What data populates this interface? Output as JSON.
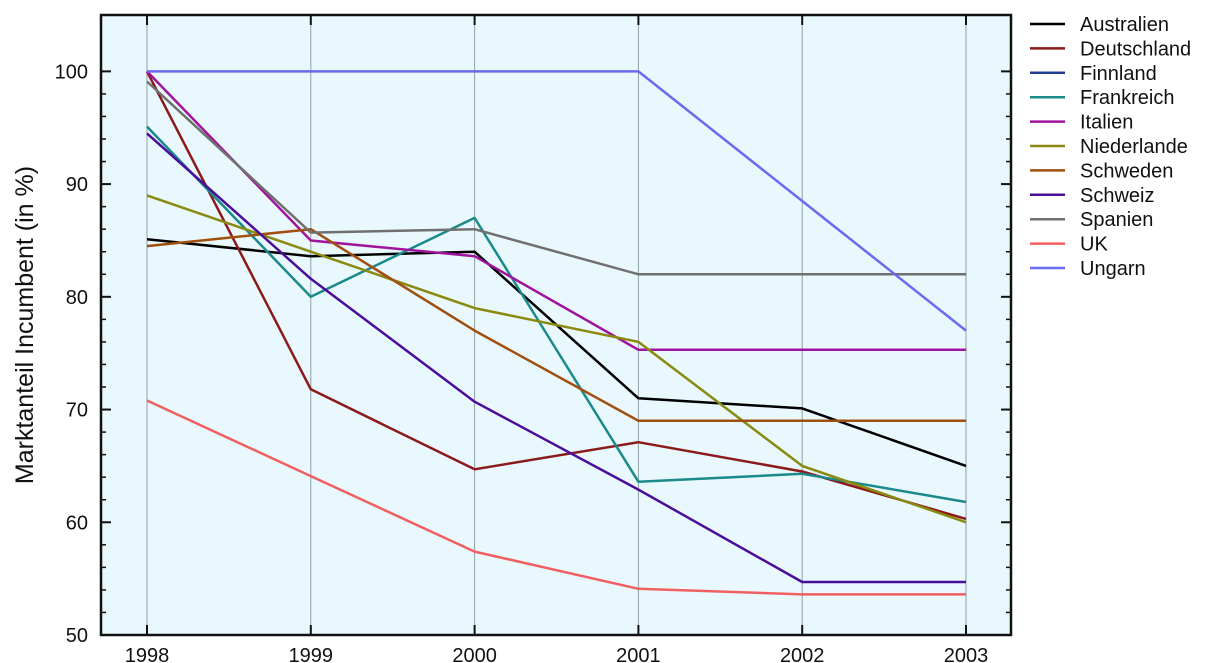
{
  "chart_data": {
    "type": "line",
    "title": "",
    "xlabel": "",
    "ylabel": "Marktanteil Incumbent (in %)",
    "x": [
      1998,
      1999,
      2000,
      2001,
      2002,
      2003
    ],
    "xticks": [
      "1998",
      "1999",
      "2000",
      "2001",
      "2002",
      "2003"
    ],
    "yticks": [
      "50",
      "60",
      "70",
      "80",
      "90",
      "100"
    ],
    "ylim": [
      50,
      105
    ],
    "grid": "vertical",
    "legend_position": "right",
    "plot_background": "#e9f8fd",
    "series": [
      {
        "name": "Australien",
        "color": "#000000",
        "values": [
          85.1,
          83.6,
          84.0,
          71.0,
          70.1,
          65.0
        ]
      },
      {
        "name": "Deutschland",
        "color": "#8b1a1a",
        "values": [
          100,
          71.8,
          64.7,
          67.1,
          64.5,
          60.3
        ]
      },
      {
        "name": "Finnland",
        "color": "#1f3f8f",
        "values": [
          null,
          null,
          null,
          null,
          null,
          null
        ]
      },
      {
        "name": "Frankreich",
        "color": "#1a8a8a",
        "values": [
          95.1,
          80.0,
          87.0,
          63.6,
          64.3,
          61.8
        ]
      },
      {
        "name": "Italien",
        "color": "#a0139e",
        "values": [
          100,
          85.0,
          83.6,
          75.3,
          75.3,
          75.3
        ]
      },
      {
        "name": "Niederlande",
        "color": "#8a8a10",
        "values": [
          89.0,
          84.0,
          79.0,
          76.0,
          65.0,
          60.0
        ]
      },
      {
        "name": "Schweden",
        "color": "#a0500e",
        "values": [
          84.5,
          86.0,
          77.0,
          69.0,
          69.0,
          69.0
        ]
      },
      {
        "name": "Schweiz",
        "color": "#4a0e9a",
        "values": [
          94.5,
          81.6,
          70.7,
          62.9,
          54.7,
          54.7
        ]
      },
      {
        "name": "Spanien",
        "color": "#707070",
        "values": [
          99.1,
          85.7,
          86.0,
          82.0,
          82.0,
          82.0
        ]
      },
      {
        "name": "UK",
        "color": "#f06060",
        "values": [
          70.8,
          64.1,
          57.4,
          54.1,
          53.6,
          53.6
        ]
      },
      {
        "name": "Ungarn",
        "color": "#6a6af0",
        "values": [
          100,
          100,
          100,
          100,
          88.5,
          77.0
        ]
      }
    ]
  }
}
